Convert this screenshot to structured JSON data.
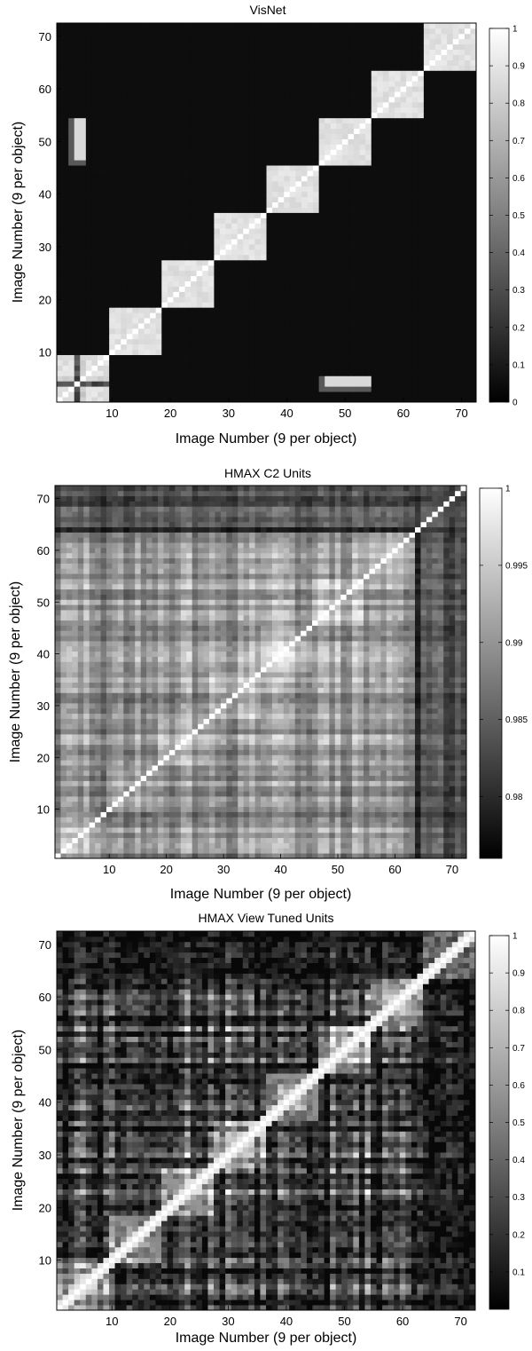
{
  "chart_data": [
    {
      "type": "heatmap",
      "title": "VisNet",
      "xlabel": "Image Number (9 per object)",
      "ylabel": "Image Number (9 per object)",
      "n": 72,
      "xticks": [
        10,
        20,
        30,
        40,
        50,
        60,
        70
      ],
      "yticks": [
        10,
        20,
        30,
        40,
        50,
        60,
        70
      ],
      "xlim": [
        1,
        72
      ],
      "ylim": [
        1,
        72
      ],
      "colorbar": {
        "min": 0,
        "max": 1,
        "ticks": [
          0,
          0.1,
          0.2,
          0.3,
          0.4,
          0.5,
          0.6,
          0.7,
          0.8,
          0.9,
          1
        ],
        "labels": [
          "0",
          "0.1",
          "0.2",
          "0.3",
          "0.4",
          "0.5",
          "0.6",
          "0.7",
          "0.8",
          "0.9",
          "1"
        ]
      },
      "background_value": 0.05,
      "block_value": 0.88,
      "off_diagonal_patches": [
        {
          "x": [
            3,
            5
          ],
          "y": [
            46,
            54
          ],
          "value": 0.85
        },
        {
          "x": [
            46,
            54
          ],
          "y": [
            3,
            5
          ],
          "value": 0.85
        }
      ]
    },
    {
      "type": "heatmap",
      "title": "HMAX C2 Units",
      "xlabel": "Image Number (9 per object)",
      "ylabel": "Image Number (9 per object)",
      "n": 72,
      "xticks": [
        10,
        20,
        30,
        40,
        50,
        60,
        70
      ],
      "yticks": [
        10,
        20,
        30,
        40,
        50,
        60,
        70
      ],
      "xlim": [
        1,
        72
      ],
      "ylim": [
        1,
        72
      ],
      "colorbar": {
        "min": 0.976,
        "max": 1,
        "ticks": [
          0.98,
          0.985,
          0.99,
          0.995,
          1
        ],
        "labels": [
          "0.98",
          "0.985",
          "0.99",
          "0.995",
          "1"
        ]
      },
      "value_range": [
        0.976,
        1
      ]
    },
    {
      "type": "heatmap",
      "title": "HMAX  View Tuned Units",
      "xlabel": "Image Number (9 per object)",
      "ylabel": "Image Number (9 per object)",
      "n": 72,
      "xticks": [
        10,
        20,
        30,
        40,
        50,
        60,
        70
      ],
      "yticks": [
        10,
        20,
        30,
        40,
        50,
        60,
        70
      ],
      "xlim": [
        1,
        72
      ],
      "ylim": [
        1,
        72
      ],
      "colorbar": {
        "min": 0,
        "max": 1,
        "ticks": [
          0.1,
          0.2,
          0.3,
          0.4,
          0.5,
          0.6,
          0.7,
          0.8,
          0.9,
          1
        ],
        "labels": [
          "0.1",
          "0.2",
          "0.3",
          "0.4",
          "0.5",
          "0.6",
          "0.7",
          "0.8",
          "0.9",
          "1"
        ]
      },
      "value_range": [
        0,
        1
      ]
    }
  ]
}
